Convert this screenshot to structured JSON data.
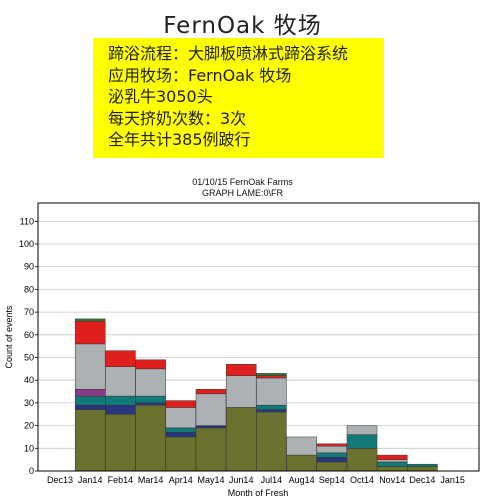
{
  "page_title": "FernOak 牧场",
  "info_lines": [
    "蹄浴流程：大脚板喷淋式蹄浴系统",
    "应用牧场：FernOak  牧场",
    "泌乳牛3050头",
    "每天挤奶次数：3次",
    "全年共计385例跛行"
  ],
  "chart_header": {
    "line1": "01/10/15        FernOak Farms",
    "line2": "GRAPH LAME:0\\FR"
  },
  "colors": {
    "olive": "#6b7230",
    "navy": "#2a3580",
    "teal": "#127a78",
    "purple": "#8a3c8a",
    "gray": "#acb1b4",
    "red": "#e0201e",
    "darkgreen": "#2e7a32",
    "info_box": "#ffff00"
  },
  "chart_data": {
    "type": "bar",
    "stacked": true,
    "xlabel": "Month of Fresh",
    "ylabel": "Count of events",
    "ylim": [
      0,
      120
    ],
    "yticks": [
      0,
      10,
      20,
      30,
      40,
      50,
      60,
      70,
      80,
      90,
      100,
      110
    ],
    "grid": "horizontal",
    "categories": [
      "Dec13",
      "Jan14",
      "Feb14",
      "Mar14",
      "Apr14",
      "May14",
      "Jun14",
      "Jul14",
      "Aug14",
      "Sep14",
      "Oct14",
      "Nov14",
      "Dec14",
      "Jan15"
    ],
    "series": [
      {
        "color": "olive",
        "values": [
          0,
          27,
          25,
          29,
          15,
          19,
          28,
          26,
          7,
          4,
          10,
          2,
          2,
          0
        ]
      },
      {
        "color": "navy",
        "values": [
          0,
          2,
          4,
          1,
          2,
          1,
          0,
          1,
          0,
          2,
          0,
          0,
          0,
          0
        ]
      },
      {
        "color": "teal",
        "values": [
          0,
          4,
          4,
          3,
          2,
          0,
          0,
          2,
          0,
          2,
          6,
          2,
          1,
          0
        ]
      },
      {
        "color": "purple",
        "values": [
          0,
          3,
          0,
          0,
          0,
          0,
          0,
          0,
          0,
          0,
          0,
          0,
          0,
          0
        ]
      },
      {
        "color": "gray",
        "values": [
          0,
          20,
          13,
          12,
          9,
          14,
          14,
          12,
          8,
          3,
          4,
          1,
          0,
          0
        ]
      },
      {
        "color": "red",
        "values": [
          0,
          10,
          7,
          4,
          3,
          2,
          5,
          1,
          0,
          1,
          0,
          2,
          0,
          0
        ]
      },
      {
        "color": "darkgreen",
        "values": [
          0,
          1,
          0,
          0,
          0,
          0,
          0,
          1,
          0,
          0,
          0,
          0,
          0,
          0
        ]
      }
    ]
  }
}
